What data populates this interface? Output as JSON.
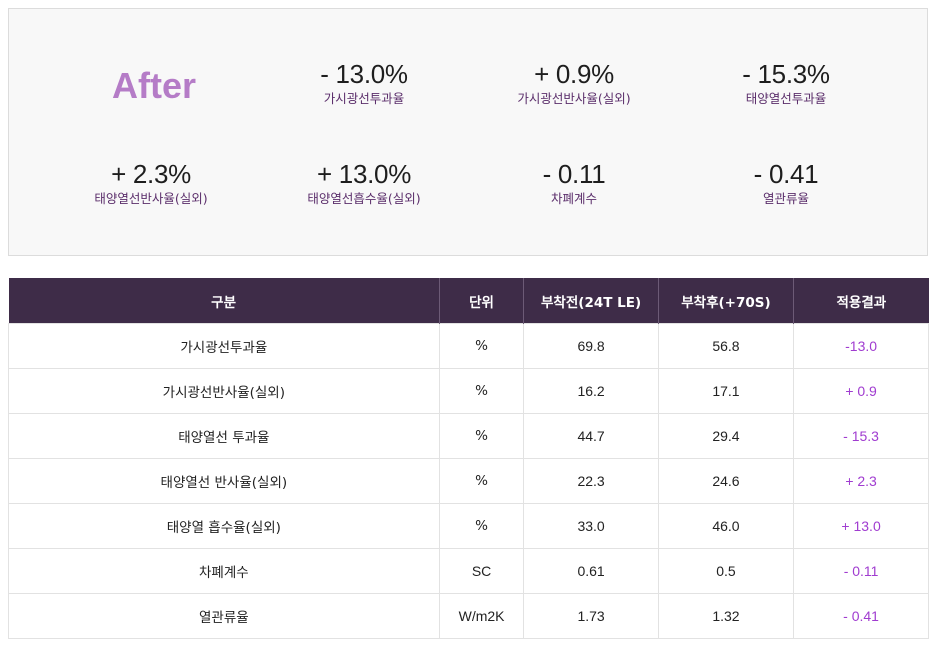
{
  "summary": {
    "title": "After",
    "stats": [
      {
        "value": "- 13.0%",
        "label": "가시광선투과율"
      },
      {
        "value": "+ 0.9%",
        "label": "가시광선반사율(실외)"
      },
      {
        "value": "- 15.3%",
        "label": "태양열선투과율"
      },
      {
        "value": "+ 2.3%",
        "label": "태양열선반사율(실외)"
      },
      {
        "value": "+ 13.0%",
        "label": "태양열선흡수율(실외)"
      },
      {
        "value": "- 0.11",
        "label": "차폐계수"
      },
      {
        "value": "- 0.41",
        "label": "열관류율"
      }
    ]
  },
  "table": {
    "headers": [
      "구분",
      "단위",
      "부착전(24T LE)",
      "부착후(+70S)",
      "적용결과"
    ],
    "rows": [
      {
        "item": "가시광선투과율",
        "unit": "%",
        "before": "69.8",
        "after": "56.8",
        "result": "-13.0"
      },
      {
        "item": "가시광선반사율(실외)",
        "unit": "%",
        "before": "16.2",
        "after": "17.1",
        "result": "+ 0.9"
      },
      {
        "item": "태양열선 투과율",
        "unit": "%",
        "before": "44.7",
        "after": "29.4",
        "result": "- 15.3"
      },
      {
        "item": "태양열선 반사율(실외)",
        "unit": "%",
        "before": "22.3",
        "after": "24.6",
        "result": "+ 2.3"
      },
      {
        "item": "태양열 흡수율(실외)",
        "unit": "%",
        "before": "33.0",
        "after": "46.0",
        "result": "+ 13.0"
      },
      {
        "item": "차폐계수",
        "unit": "SC",
        "before": "0.61",
        "after": "0.5",
        "result": "- 0.11"
      },
      {
        "item": "열관류율",
        "unit": "W/m2K",
        "before": "1.73",
        "after": "1.32",
        "result": "- 0.41"
      }
    ]
  },
  "colors": {
    "accent": "#b57cc7",
    "header_bg": "#3e2c48",
    "result_text": "#a03cd0",
    "label_text": "#5b2e6b"
  }
}
